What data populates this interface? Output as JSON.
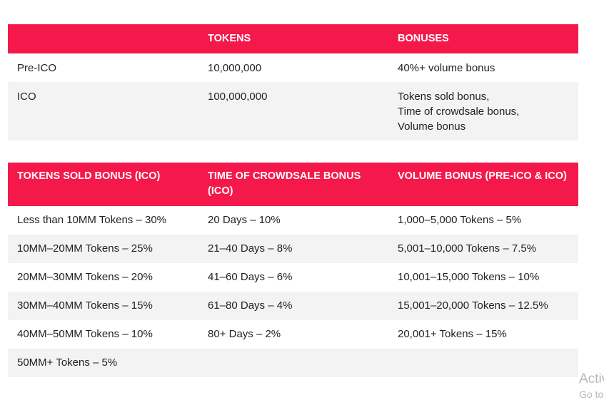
{
  "table1": {
    "headers": [
      "",
      "TOKENS",
      "BONUSES"
    ],
    "rows": [
      [
        "Pre-ICO",
        "10,000,000",
        [
          "40%+ volume bonus"
        ]
      ],
      [
        "ICO",
        "100,000,000",
        [
          "Tokens sold bonus,",
          "Time of crowdsale bonus,",
          "Volume bonus"
        ]
      ]
    ]
  },
  "table2": {
    "headers": [
      "TOKENS SOLD BONUS (ICO)",
      "TIME OF CROWDSALE BONUS (ICO)",
      "VOLUME BONUS (PRE-ICO & ICO)"
    ],
    "rows": [
      [
        "Less than 10MM Tokens – 30%",
        "20 Days – 10%",
        "1,000–5,000 Tokens – 5%"
      ],
      [
        "10MM–20MM Tokens – 25%",
        "21–40 Days – 8%",
        "5,001–10,000 Tokens – 7.5%"
      ],
      [
        "20MM–30MM Tokens – 20%",
        "41–60 Days – 6%",
        "10,001–15,000 Tokens – 10%"
      ],
      [
        "30MM–40MM Tokens – 15%",
        "61–80 Days – 4%",
        "15,001–20,000 Tokens – 12.5%"
      ],
      [
        "40MM–50MM Tokens – 10%",
        "80+ Days – 2%",
        "20,001+ Tokens – 15%"
      ],
      [
        "50MM+ Tokens – 5%",
        "",
        ""
      ]
    ]
  },
  "watermark": {
    "line1": "Activ",
    "line2": "Go to"
  },
  "colors": {
    "header": "#f5194b",
    "alt_row": "#f3f3f3"
  }
}
